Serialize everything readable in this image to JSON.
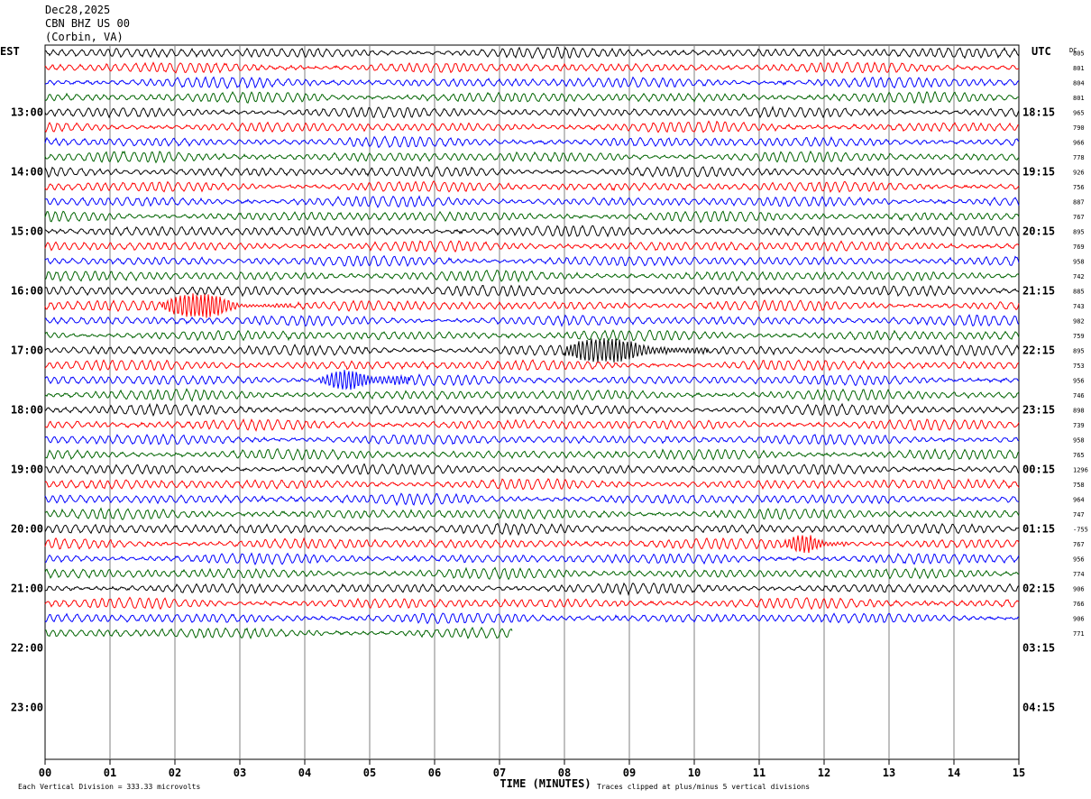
{
  "header": {
    "date": "Dec28,2025",
    "station": "CBN BHZ US 00",
    "location": "(Corbin, VA)"
  },
  "chart_data": {
    "type": "line",
    "title": "",
    "left_axis_label": "EST",
    "right_axis_label": "UTC",
    "dc_label": "DC",
    "xlabel": "TIME (MINUTES)",
    "x_ticks": [
      "00",
      "01",
      "02",
      "03",
      "04",
      "05",
      "06",
      "07",
      "08",
      "09",
      "10",
      "11",
      "12",
      "13",
      "14",
      "15"
    ],
    "xlim": [
      0,
      15
    ],
    "grid": true,
    "left_hour_labels": [
      "13:00",
      "14:00",
      "15:00",
      "16:00",
      "17:00",
      "18:00",
      "19:00",
      "20:00",
      "21:00",
      "22:00",
      "23:00"
    ],
    "right_hour_labels": [
      "18:15",
      "19:15",
      "20:15",
      "21:15",
      "22:15",
      "23:15",
      "00:15",
      "01:15",
      "02:15",
      "03:15",
      "04:15"
    ],
    "trace_colors": [
      "#000000",
      "#ff0000",
      "#0000ff",
      "#006400"
    ],
    "row_dc_values": [
      "805",
      "801",
      "804",
      "801",
      "965",
      "790",
      "966",
      "778",
      "926",
      "756",
      "887",
      "767",
      "895",
      "769",
      "958",
      "742",
      "885",
      "743",
      "982",
      "759",
      "895",
      "753",
      "956",
      "746",
      "898",
      "739",
      "958",
      "765",
      "1296",
      "758",
      "964",
      "747",
      "-755",
      "767",
      "956",
      "774",
      "906",
      "766",
      "906",
      "771"
    ],
    "last_trace_end_minute": 7.2,
    "events": [
      {
        "row": 17,
        "start_minute": 1.8,
        "end_minute": 3.8,
        "strength": 2.8
      },
      {
        "row": 20,
        "start_minute": 8.0,
        "end_minute": 10.2,
        "strength": 2.4
      },
      {
        "row": 22,
        "start_minute": 4.2,
        "end_minute": 5.6,
        "strength": 2.0
      },
      {
        "row": 33,
        "start_minute": 11.4,
        "end_minute": 12.4,
        "strength": 1.6
      }
    ],
    "footer_left": "Each Vertical Division =  333.33 microvolts",
    "footer_right": "Traces clipped at plus/minus 5 vertical divisions"
  }
}
